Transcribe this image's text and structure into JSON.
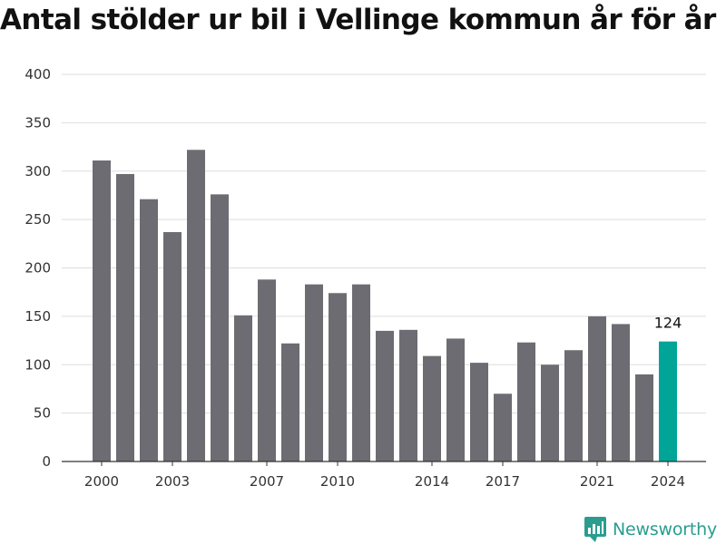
{
  "title": "Antal stölder ur bil i Vellinge kommun år för år",
  "brand": {
    "name": "Newsworthy",
    "logo_icon": "newsworthy-chart-icon",
    "color": "#2a9d8f"
  },
  "chart_data": {
    "type": "bar",
    "title": "Antal stölder ur bil i Vellinge kommun år för år",
    "xlabel": "",
    "ylabel": "",
    "categories": [
      "2000",
      "2001",
      "2002",
      "2003",
      "2004",
      "2005",
      "2006",
      "2007",
      "2008",
      "2009",
      "2010",
      "2011",
      "2012",
      "2013",
      "2014",
      "2015",
      "2016",
      "2017",
      "2018",
      "2019",
      "2020",
      "2021",
      "2022",
      "2023",
      "2024"
    ],
    "values": [
      311,
      297,
      271,
      237,
      322,
      276,
      151,
      188,
      122,
      183,
      174,
      183,
      135,
      136,
      109,
      127,
      102,
      70,
      123,
      100,
      115,
      150,
      142,
      90,
      124
    ],
    "ylim": [
      0,
      400
    ],
    "yticks": [
      0,
      50,
      100,
      150,
      200,
      250,
      300,
      350,
      400
    ],
    "xtick_labels": [
      "2000",
      "2003",
      "2007",
      "2010",
      "2014",
      "2017",
      "2021",
      "2024"
    ],
    "highlight": {
      "category": "2024",
      "label": "124"
    },
    "grid": true,
    "legend": "none",
    "colors": {
      "bar": "#6d6c72",
      "highlight": "#00a598",
      "grid": "#dddddd",
      "axis": "#333333"
    }
  }
}
